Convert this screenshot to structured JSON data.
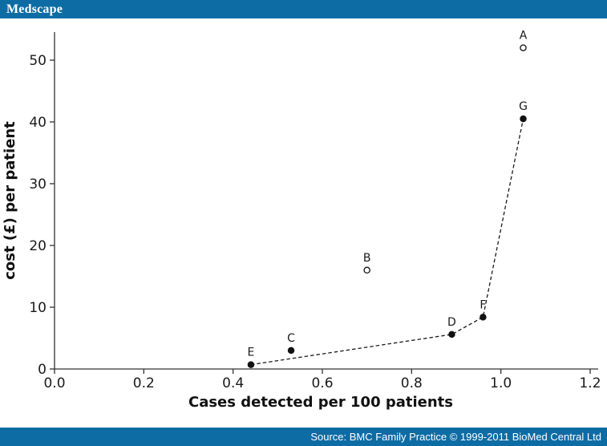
{
  "header": {
    "logo": "Medscape",
    "bar_color": "#0e6ca4"
  },
  "footer": {
    "source_text": "Source: BMC Family Practice © 1999-2011 BioMed Central Ltd",
    "bar_color": "#0e6ca4"
  },
  "chart_data": {
    "type": "scatter",
    "title": "",
    "xlabel": "Cases detected per 100 patients",
    "ylabel": "cost (£) per patient",
    "xlim": [
      0.0,
      1.2
    ],
    "ylim": [
      0,
      54.5
    ],
    "x_ticks": [
      "0.0",
      "0.2",
      "0.4",
      "0.6",
      "0.8",
      "1.0",
      "1.2"
    ],
    "y_ticks": [
      "0",
      "10",
      "20",
      "30",
      "40",
      "50"
    ],
    "grid": false,
    "legend": "none",
    "axis_color": "#333333",
    "point_color": "#111111",
    "points": [
      {
        "label": "A",
        "x": 1.05,
        "y": 52.0,
        "marker": "open"
      },
      {
        "label": "B",
        "x": 0.7,
        "y": 16.0,
        "marker": "open"
      },
      {
        "label": "C",
        "x": 0.53,
        "y": 3.0,
        "marker": "filled"
      },
      {
        "label": "D",
        "x": 0.89,
        "y": 5.6,
        "marker": "filled"
      },
      {
        "label": "E",
        "x": 0.44,
        "y": 0.7,
        "marker": "filled"
      },
      {
        "label": "F",
        "x": 0.96,
        "y": 8.4,
        "marker": "filled"
      },
      {
        "label": "G",
        "x": 1.05,
        "y": 40.5,
        "marker": "filled"
      }
    ],
    "frontier_line": {
      "style": "dashed",
      "points": [
        "E",
        "D",
        "F",
        "G"
      ]
    }
  }
}
